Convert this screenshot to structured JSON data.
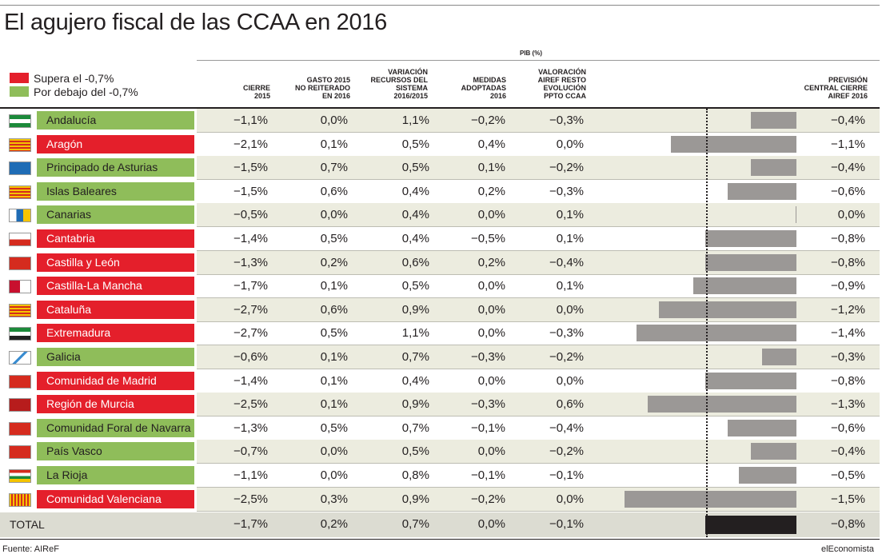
{
  "title": "El agujero fiscal de las CCAA en 2016",
  "legend": {
    "above_label": "Supera el -0,7%",
    "above_color": "#e41f2b",
    "below_label": "Por debajo del -0,7%",
    "below_color": "#8fbd5a"
  },
  "pib_label": "PIB (%)",
  "columns": [
    "CIERRE\n2015",
    "GASTO 2015\nNO REITERADO\nEN 2016",
    "VARIACIÓN\nRECURSOS DEL\nSISTEMA\n2016/2015",
    "MEDIDAS\nADOPTADAS\n2016",
    "VALORACIÓN\nAIREF RESTO\nEVOLUCIÓN\nPPTO CCAA",
    "PREVISIÓN\nCENTRAL CIERRE\nAIREF 2016"
  ],
  "chart_data": {
    "type": "table",
    "title": "El agujero fiscal de las CCAA en 2016",
    "bar_column": "PREVISIÓN CENTRAL CIERRE AIREF 2016",
    "bar_xlim": [
      -1.5,
      0
    ],
    "rows": [
      {
        "name": "Andalucía",
        "status": "below",
        "values": [
          "−1,1%",
          "0,0%",
          "1,1%",
          "−0,2%",
          "−0,3%"
        ],
        "prevision": "−0,4%",
        "prevision_value": -0.4
      },
      {
        "name": "Aragón",
        "status": "above",
        "values": [
          "−2,1%",
          "0,1%",
          "0,5%",
          "0,4%",
          "0,0%"
        ],
        "prevision": "−1,1%",
        "prevision_value": -1.1
      },
      {
        "name": "Principado de Asturias",
        "status": "below",
        "values": [
          "−1,5%",
          "0,7%",
          "0,5%",
          "0,1%",
          "−0,2%"
        ],
        "prevision": "−0,4%",
        "prevision_value": -0.4
      },
      {
        "name": "Islas Baleares",
        "status": "below",
        "values": [
          "−1,5%",
          "0,6%",
          "0,4%",
          "0,2%",
          "−0,3%"
        ],
        "prevision": "−0,6%",
        "prevision_value": -0.6
      },
      {
        "name": "Canarias",
        "status": "below",
        "values": [
          "−0,5%",
          "0,0%",
          "0,4%",
          "0,0%",
          "0,1%"
        ],
        "prevision": "0,0%",
        "prevision_value": 0.0
      },
      {
        "name": "Cantabria",
        "status": "above",
        "values": [
          "−1,4%",
          "0,5%",
          "0,4%",
          "−0,5%",
          "0,1%"
        ],
        "prevision": "−0,8%",
        "prevision_value": -0.8
      },
      {
        "name": "Castilla y León",
        "status": "above",
        "values": [
          "−1,3%",
          "0,2%",
          "0,6%",
          "0,2%",
          "−0,4%"
        ],
        "prevision": "−0,8%",
        "prevision_value": -0.8
      },
      {
        "name": "Castilla-La Mancha",
        "status": "above",
        "values": [
          "−1,7%",
          "0,1%",
          "0,5%",
          "0,0%",
          "0,1%"
        ],
        "prevision": "−0,9%",
        "prevision_value": -0.9
      },
      {
        "name": "Cataluña",
        "status": "above",
        "values": [
          "−2,7%",
          "0,6%",
          "0,9%",
          "0,0%",
          "0,0%"
        ],
        "prevision": "−1,2%",
        "prevision_value": -1.2
      },
      {
        "name": "Extremadura",
        "status": "above",
        "values": [
          "−2,7%",
          "0,5%",
          "1,1%",
          "0,0%",
          "−0,3%"
        ],
        "prevision": "−1,4%",
        "prevision_value": -1.4
      },
      {
        "name": "Galicia",
        "status": "below",
        "values": [
          "−0,6%",
          "0,1%",
          "0,7%",
          "−0,3%",
          "−0,2%"
        ],
        "prevision": "−0,3%",
        "prevision_value": -0.3
      },
      {
        "name": "Comunidad de Madrid",
        "status": "above",
        "values": [
          "−1,4%",
          "0,1%",
          "0,4%",
          "0,0%",
          "0,0%"
        ],
        "prevision": "−0,8%",
        "prevision_value": -0.8
      },
      {
        "name": "Región de Murcia",
        "status": "above",
        "values": [
          "−2,5%",
          "0,1%",
          "0,9%",
          "−0,3%",
          "0,6%"
        ],
        "prevision": "−1,3%",
        "prevision_value": -1.3
      },
      {
        "name": "Comunidad Foral de Navarra",
        "status": "below",
        "values": [
          "−1,3%",
          "0,5%",
          "0,7%",
          "−0,1%",
          "−0,4%"
        ],
        "prevision": "−0,6%",
        "prevision_value": -0.6
      },
      {
        "name": "País Vasco",
        "status": "below",
        "values": [
          "−0,7%",
          "0,0%",
          "0,5%",
          "0,0%",
          "−0,2%"
        ],
        "prevision": "−0,4%",
        "prevision_value": -0.4
      },
      {
        "name": "La Rioja",
        "status": "below",
        "values": [
          "−1,1%",
          "0,0%",
          "0,8%",
          "−0,1%",
          "−0,1%"
        ],
        "prevision": "−0,5%",
        "prevision_value": -0.5
      },
      {
        "name": "Comunidad Valenciana",
        "status": "above",
        "values": [
          "−2,5%",
          "0,3%",
          "0,9%",
          "−0,2%",
          "0,0%"
        ],
        "prevision": "−1,5%",
        "prevision_value": -1.5
      }
    ],
    "total": {
      "name": "TOTAL",
      "values": [
        "−1,7%",
        "0,2%",
        "0,7%",
        "0,0%",
        "−0,1%"
      ],
      "prevision": "−0,8%",
      "prevision_value": -0.8
    }
  },
  "source": "Fuente: AIReF",
  "brand": "elEconomista"
}
